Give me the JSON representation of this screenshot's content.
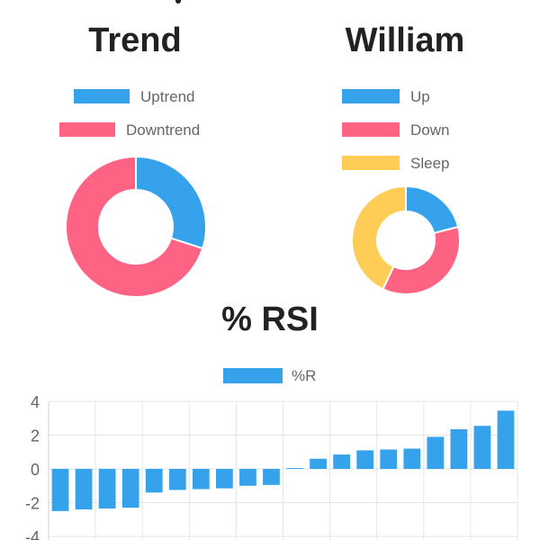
{
  "colors": {
    "blue": "#36A2EB",
    "pink": "#FF6384",
    "yellow": "#FFCD56",
    "grid": "#e6e6e6",
    "tick": "#666666"
  },
  "chart_data": [
    {
      "type": "pie",
      "title": "Trend",
      "labels": [
        "Uptrend",
        "Downtrend"
      ],
      "values": [
        30,
        70
      ],
      "colors": [
        "#36A2EB",
        "#FF6384"
      ],
      "legend": "top"
    },
    {
      "type": "pie",
      "title": "William",
      "labels": [
        "Up",
        "Down",
        "Sleep"
      ],
      "values": [
        21,
        36,
        43
      ],
      "colors": [
        "#36A2EB",
        "#FF6384",
        "#FFCD56"
      ],
      "legend": "top"
    },
    {
      "type": "bar",
      "title": "% RSI",
      "legend": "top",
      "series": [
        {
          "name": "%R",
          "values": [
            -2.5,
            -2.4,
            -2.35,
            -2.3,
            -1.4,
            -1.25,
            -1.2,
            -1.15,
            -1.0,
            -0.95,
            0.05,
            0.6,
            0.85,
            1.1,
            1.15,
            1.2,
            1.9,
            2.35,
            2.55,
            3.45
          ]
        }
      ],
      "ylim": [
        -4,
        4
      ],
      "yticks": [
        4,
        2,
        0,
        -2,
        -4
      ],
      "grid": true,
      "color": "#36A2EB"
    }
  ]
}
